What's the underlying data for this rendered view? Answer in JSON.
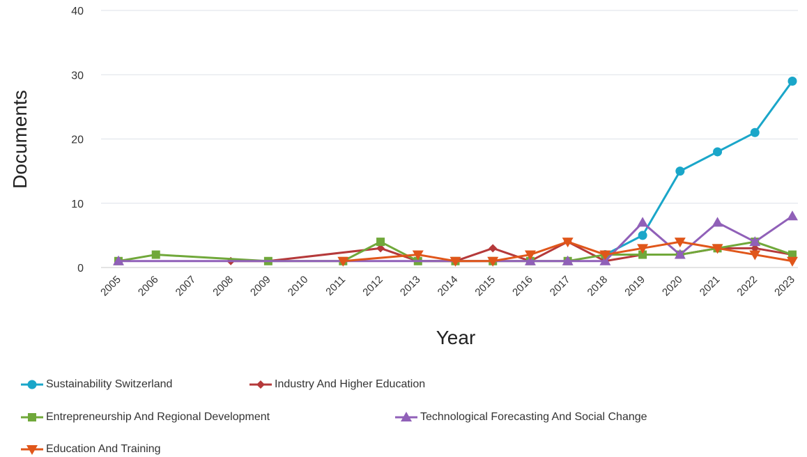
{
  "chart_data": {
    "type": "line",
    "xlabel": "Year",
    "ylabel": "Documents",
    "ylim": [
      0,
      40
    ],
    "yticks": [
      0,
      10,
      20,
      30,
      40
    ],
    "grid": "horizontal",
    "legend_position": "bottom",
    "categories": [
      "2005",
      "2006",
      "2007",
      "2008",
      "2009",
      "2010",
      "2011",
      "2012",
      "2013",
      "2014",
      "2015",
      "2016",
      "2017",
      "2018",
      "2019",
      "2020",
      "2021",
      "2022",
      "2023"
    ],
    "series": [
      {
        "name": "Sustainability Switzerland",
        "color": "#1aa6c9",
        "marker": "circle",
        "x": [
          "2018",
          "2019",
          "2020",
          "2021",
          "2022",
          "2023"
        ],
        "values": [
          2,
          5,
          15,
          18,
          21,
          29
        ]
      },
      {
        "name": "Industry And Higher Education",
        "color": "#b5393a",
        "marker": "diamond",
        "x": [
          "2008",
          "2009",
          "2012",
          "2013",
          "2014",
          "2015",
          "2016",
          "2017",
          "2018",
          "2019",
          "2020",
          "2021",
          "2022",
          "2023"
        ],
        "values": [
          1,
          1,
          3,
          1,
          1,
          3,
          1,
          4,
          1,
          2,
          2,
          3,
          3,
          2
        ]
      },
      {
        "name": "Entrepreneurship And Regional Development",
        "color": "#70a83a",
        "marker": "square",
        "x": [
          "2005",
          "2006",
          "2009",
          "2011",
          "2012",
          "2013",
          "2014",
          "2015",
          "2016",
          "2017",
          "2018",
          "2019",
          "2020",
          "2021",
          "2022",
          "2023"
        ],
        "values": [
          1,
          2,
          1,
          1,
          4,
          1,
          1,
          1,
          1,
          1,
          2,
          2,
          2,
          3,
          4,
          2
        ]
      },
      {
        "name": "Technological Forecasting And Social Change",
        "color": "#9060b8",
        "marker": "triangle-up",
        "x": [
          "2005",
          "2016",
          "2017",
          "2018",
          "2019",
          "2020",
          "2021",
          "2022",
          "2023"
        ],
        "values": [
          1,
          1,
          1,
          1,
          7,
          2,
          7,
          4,
          8
        ]
      },
      {
        "name": "Education And Training",
        "color": "#e0561a",
        "marker": "triangle-down",
        "x": [
          "2011",
          "2013",
          "2014",
          "2015",
          "2016",
          "2017",
          "2018",
          "2019",
          "2020",
          "2021",
          "2022",
          "2023"
        ],
        "values": [
          1,
          2,
          1,
          1,
          2,
          4,
          2,
          3,
          4,
          3,
          2,
          1
        ]
      }
    ]
  }
}
